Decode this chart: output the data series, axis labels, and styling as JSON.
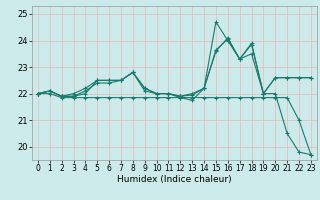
{
  "title": "",
  "xlabel": "Humidex (Indice chaleur)",
  "ylabel": "",
  "bg_color": "#cceaea",
  "line_color": "#1a7a6e",
  "xlim": [
    -0.5,
    23.5
  ],
  "ylim": [
    19.5,
    25.3
  ],
  "yticks": [
    20,
    21,
    22,
    23,
    24,
    25
  ],
  "xticks": [
    0,
    1,
    2,
    3,
    4,
    5,
    6,
    7,
    8,
    9,
    10,
    11,
    12,
    13,
    14,
    15,
    16,
    17,
    18,
    19,
    20,
    21,
    22,
    23
  ],
  "series": [
    [
      22.0,
      22.1,
      21.9,
      21.9,
      22.0,
      22.5,
      22.5,
      22.5,
      22.8,
      22.1,
      22.0,
      22.0,
      21.85,
      21.75,
      22.2,
      23.6,
      24.1,
      23.3,
      23.5,
      22.0,
      22.0,
      20.5,
      19.8,
      19.7
    ],
    [
      22.0,
      22.1,
      21.9,
      21.9,
      22.1,
      22.4,
      22.4,
      22.5,
      22.8,
      22.2,
      22.0,
      22.0,
      21.9,
      22.0,
      22.2,
      23.65,
      24.05,
      23.3,
      23.9,
      22.0,
      22.6,
      22.6,
      22.6,
      22.6
    ],
    [
      22.0,
      22.1,
      21.9,
      22.0,
      22.2,
      22.5,
      22.5,
      22.5,
      22.8,
      22.2,
      22.0,
      22.0,
      21.9,
      21.95,
      22.2,
      24.7,
      24.0,
      23.3,
      23.85,
      22.0,
      22.6,
      22.6,
      22.6,
      22.6
    ],
    [
      22.0,
      22.0,
      21.85,
      21.85,
      21.85,
      21.85,
      21.85,
      21.85,
      21.85,
      21.85,
      21.85,
      21.85,
      21.85,
      21.85,
      21.85,
      21.85,
      21.85,
      21.85,
      21.85,
      21.85,
      21.85,
      21.85,
      21.0,
      19.7
    ]
  ]
}
